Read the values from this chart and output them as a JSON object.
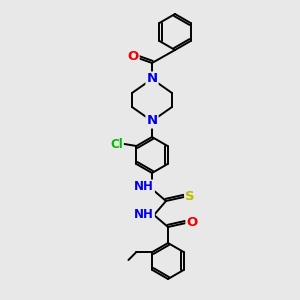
{
  "bg_color": "#e8e8e8",
  "bond_color": "#000000",
  "bond_width": 1.4,
  "atom_colors": {
    "N": "#0000ee",
    "O": "#ee0000",
    "S": "#bbbb00",
    "Cl": "#00bb00",
    "C": "#000000",
    "H": "#444444"
  },
  "font_size": 8.5
}
